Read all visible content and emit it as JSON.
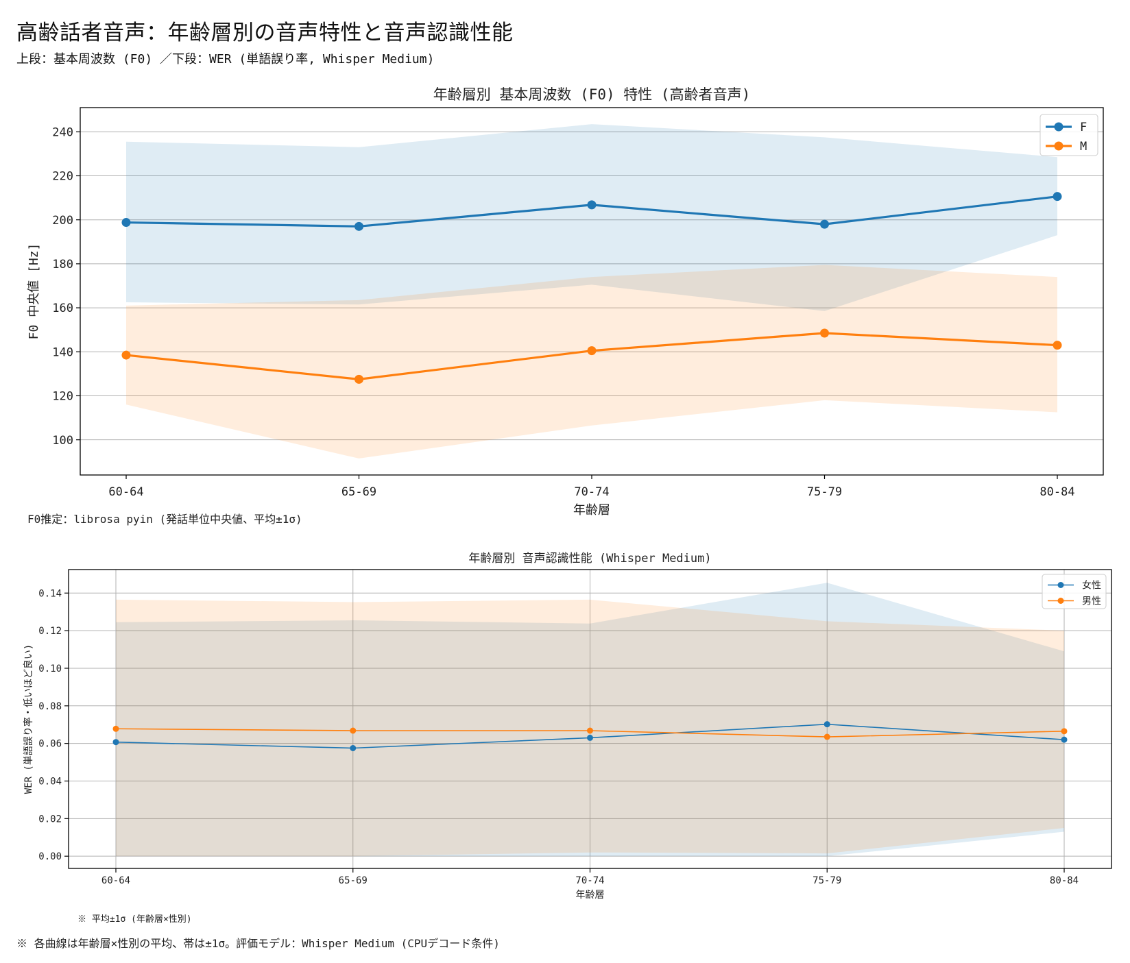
{
  "header": {
    "title": "高齢話者音声：年齢層別の音声特性と音声認識性能",
    "subtitle": "上段：基本周波数 (F0) ／下段：WER (単語誤り率, Whisper Medium)"
  },
  "footer": {
    "note": "※ 各曲線は年齢層×性別の平均、帯は±1σ。評価モデル：Whisper Medium (CPUデコード条件)"
  },
  "colors": {
    "blue": "#1f77b4",
    "orange": "#ff7f0e"
  },
  "chart_data": [
    {
      "type": "line",
      "title": "年齢層別 基本周波数 (F0) 特性 (高齢者音声)",
      "xlabel": "年齢層",
      "ylabel": "F0 中央値 [Hz]",
      "categories": [
        "60-64",
        "65-69",
        "70-74",
        "75-79",
        "80-84"
      ],
      "ylim": [
        84,
        251
      ],
      "yticks": [
        100,
        120,
        140,
        160,
        180,
        200,
        220,
        240
      ],
      "ytick_labels": [
        "100",
        "120",
        "140",
        "160",
        "180",
        "200",
        "220",
        "240"
      ],
      "grid": "y",
      "legend": "top-right",
      "note": "F0推定：librosa pyin (発話単位中央値、平均±1σ)",
      "series": [
        {
          "name": "F",
          "color": "#1f77b4",
          "values": [
            198.8,
            197.0,
            206.8,
            198.0,
            210.6
          ],
          "lower": [
            162.5,
            161.5,
            170.5,
            158.5,
            193.0
          ],
          "upper": [
            235.5,
            233.0,
            243.5,
            237.5,
            228.5
          ]
        },
        {
          "name": "M",
          "color": "#ff7f0e",
          "values": [
            138.5,
            127.5,
            140.5,
            148.5,
            143.0
          ],
          "lower": [
            116.0,
            91.5,
            106.5,
            118.0,
            112.5
          ],
          "upper": [
            161.0,
            163.5,
            174.0,
            179.5,
            174.0
          ]
        }
      ]
    },
    {
      "type": "line",
      "title": "年齢層別 音声認識性能 (Whisper Medium)",
      "xlabel": "年齢層",
      "ylabel": "WER (単語誤り率・低いほど良い)",
      "categories": [
        "60-64",
        "65-69",
        "70-74",
        "75-79",
        "80-84"
      ],
      "ylim": [
        -0.0065,
        0.1525
      ],
      "yticks": [
        0.0,
        0.02,
        0.04,
        0.06,
        0.08,
        0.1,
        0.12,
        0.14
      ],
      "ytick_labels": [
        "0.00",
        "0.02",
        "0.04",
        "0.06",
        "0.08",
        "0.10",
        "0.12",
        "0.14"
      ],
      "grid": "both",
      "legend": "top-right",
      "note": "※ 平均±1σ (年齢層×性別)",
      "series": [
        {
          "name": "女性",
          "color": "#1f77b4",
          "values": [
            0.0607,
            0.0575,
            0.063,
            0.0702,
            0.062
          ],
          "lower": [
            0.0,
            0.0,
            0.0,
            0.0,
            0.013
          ],
          "upper": [
            0.1245,
            0.1255,
            0.1238,
            0.1455,
            0.109
          ]
        },
        {
          "name": "男性",
          "color": "#ff7f0e",
          "values": [
            0.0678,
            0.0668,
            0.0668,
            0.0635,
            0.0665
          ],
          "lower": [
            0.0,
            0.0,
            0.002,
            0.0015,
            0.015
          ],
          "upper": [
            0.1365,
            0.1352,
            0.1365,
            0.125,
            0.12
          ]
        }
      ]
    }
  ]
}
